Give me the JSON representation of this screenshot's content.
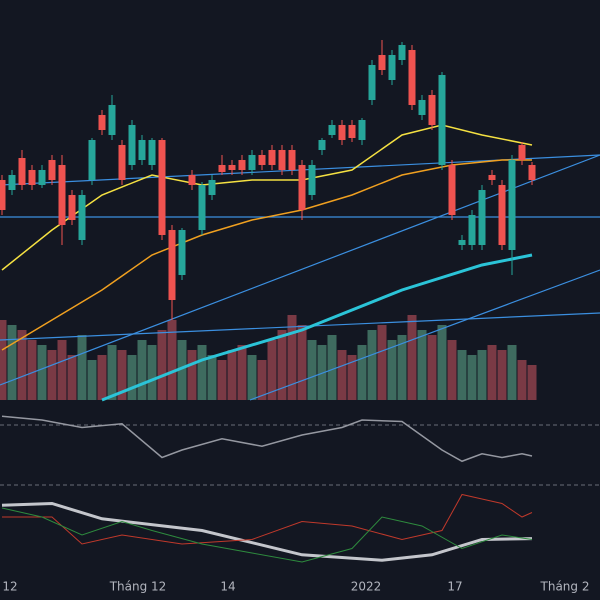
{
  "chart_data": {
    "type": "candlestick",
    "xlim": [
      -0.2,
      59.8
    ],
    "ylim": [
      0,
      400
    ],
    "x_labels": [
      {
        "value": 0.8,
        "label": "12"
      },
      {
        "value": 13.6,
        "label": "Tháng 12"
      },
      {
        "value": 22.6,
        "label": "14"
      },
      {
        "value": 36.4,
        "label": "2022"
      },
      {
        "value": 45.3,
        "label": "17"
      },
      {
        "value": 56.3,
        "label": "Tháng 2"
      }
    ],
    "colors": {
      "up": "#26a69a",
      "down": "#ef5350",
      "vol_up": "#3e6b5f",
      "vol_down": "#7a3a45"
    },
    "open": [
      220,
      210,
      242,
      230,
      215,
      240,
      235,
      205,
      160,
      220,
      285,
      265,
      255,
      235,
      240,
      235,
      260,
      170,
      125,
      225,
      170,
      205,
      235,
      235,
      240,
      230,
      245,
      250,
      250,
      250,
      235,
      205,
      250,
      265,
      275,
      275,
      260,
      300,
      345,
      320,
      340,
      350,
      285,
      305,
      235,
      235,
      155,
      155,
      155,
      225,
      215,
      150,
      255,
      235
    ],
    "high": [
      225,
      230,
      250,
      235,
      235,
      245,
      245,
      210,
      210,
      262,
      290,
      305,
      260,
      280,
      265,
      262,
      262,
      175,
      172,
      230,
      218,
      225,
      245,
      240,
      245,
      250,
      250,
      255,
      255,
      255,
      240,
      240,
      262,
      280,
      280,
      280,
      282,
      340,
      360,
      350,
      358,
      355,
      305,
      310,
      328,
      240,
      165,
      190,
      215,
      230,
      220,
      245,
      258,
      238
    ],
    "low": [
      185,
      205,
      210,
      210,
      212,
      215,
      155,
      175,
      155,
      215,
      265,
      260,
      215,
      230,
      235,
      230,
      160,
      80,
      120,
      210,
      165,
      200,
      225,
      225,
      225,
      225,
      230,
      230,
      225,
      225,
      180,
      200,
      245,
      262,
      255,
      258,
      255,
      295,
      325,
      315,
      335,
      290,
      280,
      270,
      230,
      180,
      150,
      150,
      150,
      215,
      150,
      125,
      235,
      215
    ],
    "close": [
      190,
      225,
      215,
      215,
      230,
      220,
      175,
      180,
      205,
      260,
      270,
      295,
      220,
      275,
      260,
      260,
      165,
      100,
      170,
      215,
      215,
      220,
      228,
      230,
      230,
      245,
      235,
      235,
      230,
      230,
      190,
      235,
      260,
      275,
      260,
      262,
      280,
      335,
      330,
      345,
      355,
      295,
      300,
      275,
      325,
      185,
      160,
      185,
      210,
      220,
      155,
      240,
      240,
      220
    ],
    "volume": {
      "ylim": [
        0,
        100
      ],
      "values": [
        80,
        75,
        70,
        60,
        55,
        50,
        60,
        45,
        65,
        40,
        45,
        55,
        50,
        45,
        60,
        55,
        70,
        80,
        60,
        50,
        55,
        45,
        40,
        50,
        55,
        45,
        40,
        60,
        70,
        85,
        75,
        60,
        55,
        65,
        50,
        45,
        55,
        70,
        75,
        60,
        65,
        85,
        70,
        65,
        75,
        60,
        50,
        45,
        50,
        55,
        50,
        55,
        40,
        35
      ]
    },
    "lines": [
      {
        "color": "#f5e142",
        "width": 1.5,
        "x": [
          0,
          5,
          10,
          15,
          20,
          25,
          30,
          35,
          40,
          44,
          48,
          53
        ],
        "values": [
          130,
          170,
          205,
          225,
          215,
          220,
          220,
          230,
          265,
          275,
          265,
          255
        ]
      },
      {
        "color": "#f0a020",
        "width": 1.5,
        "x": [
          0,
          5,
          10,
          15,
          20,
          25,
          30,
          35,
          40,
          45,
          50,
          53
        ],
        "values": [
          50,
          80,
          110,
          145,
          165,
          180,
          190,
          205,
          225,
          235,
          240,
          240
        ]
      },
      {
        "color": "#2bc4d8",
        "width": 3,
        "x": [
          10,
          20,
          30,
          40,
          48,
          53
        ],
        "values": [
          0,
          40,
          70,
          110,
          135,
          145
        ]
      }
    ],
    "trendlines": [
      {
        "color": "#3b8fe0",
        "x": [
          -0.2,
          59.8
        ],
        "values": [
          215,
          245
        ]
      },
      {
        "color": "#3b8fe0",
        "x": [
          -0.2,
          59.8
        ],
        "values": [
          183,
          183
        ]
      },
      {
        "color": "#3b8fe0",
        "x": [
          -0.2,
          59.8
        ],
        "values": [
          15,
          245
        ]
      },
      {
        "color": "#3b8fe0",
        "x": [
          -0.2,
          59.8
        ],
        "values": [
          60,
          87
        ]
      },
      {
        "color": "#3b8fe0",
        "x": [
          24.8,
          59.8
        ],
        "values": [
          0,
          130
        ]
      }
    ],
    "rsi": {
      "ylim": [
        0,
        100
      ],
      "color": "#9598a1",
      "x": [
        0,
        4,
        8,
        12,
        16,
        18,
        22,
        26,
        30,
        34,
        36,
        40,
        44,
        46,
        48,
        50,
        52,
        53
      ],
      "values": [
        85,
        80,
        70,
        75,
        30,
        40,
        55,
        45,
        60,
        70,
        80,
        78,
        40,
        25,
        35,
        30,
        35,
        32
      ]
    },
    "osc": {
      "ylim": [
        0,
        100
      ],
      "series": [
        {
          "color": "#c4c6cc",
          "width": 3,
          "x": [
            0,
            5,
            10,
            20,
            30,
            38,
            43,
            48,
            53
          ],
          "values": [
            83,
            85,
            68,
            55,
            28,
            22,
            28,
            45,
            46
          ]
        },
        {
          "color": "#c0392b",
          "width": 1,
          "x": [
            0,
            5,
            8,
            12,
            18,
            25,
            30,
            35,
            40,
            44,
            46,
            48,
            50,
            52,
            53
          ],
          "values": [
            70,
            70,
            40,
            50,
            40,
            45,
            65,
            60,
            45,
            55,
            95,
            90,
            85,
            70,
            75
          ]
        },
        {
          "color": "#2e8b3e",
          "width": 1,
          "x": [
            0,
            4,
            8,
            12,
            15,
            20,
            25,
            30,
            35,
            38,
            42,
            46,
            50,
            53
          ],
          "values": [
            80,
            70,
            50,
            65,
            55,
            40,
            30,
            20,
            35,
            70,
            60,
            35,
            50,
            45
          ]
        }
      ]
    }
  }
}
